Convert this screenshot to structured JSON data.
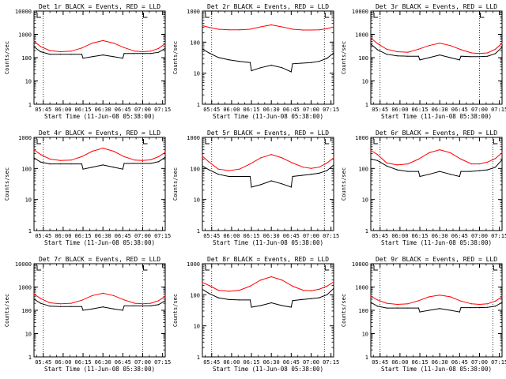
{
  "figure": {
    "colors": {
      "events": "#000000",
      "lld": "#ff0000",
      "axis": "#000000",
      "background": "#ffffff"
    }
  },
  "chart_data": [
    {
      "type": "line",
      "panel": "1r",
      "title": "Det 1r BLACK = Events, RED = LLD",
      "xlabel": "Start Time (11-Jun-08 05:38:00)",
      "ylabel": "Counts/sec",
      "yscale": "log",
      "ylim": [
        1,
        10000
      ],
      "ytick_labels": [
        "1",
        "10",
        "100",
        "1000",
        "10000"
      ],
      "xlim": [
        "05:38",
        "07:17"
      ],
      "xtick_labels": [
        "05:45",
        "06:00",
        "06:15",
        "06:30",
        "06:45",
        "07:00",
        "07:15"
      ],
      "vlines": [
        "05:45",
        "07:00"
      ],
      "grid": false,
      "legend": "none",
      "series": [
        {
          "name": "Events",
          "color": "#000000",
          "x": [
            "05:38",
            "05:43",
            "05:50",
            "05:58",
            "06:06",
            "06:14",
            "06:15",
            "06:22",
            "06:30",
            "06:38",
            "06:45",
            "06:46",
            "06:53",
            "07:00",
            "07:06",
            "07:12",
            "07:17"
          ],
          "y": [
            290,
            180,
            140,
            140,
            140,
            140,
            95,
            110,
            130,
            110,
            95,
            150,
            150,
            150,
            150,
            170,
            250
          ]
        },
        {
          "name": "LLD",
          "color": "#ff0000",
          "x": [
            "05:38",
            "05:43",
            "05:50",
            "05:58",
            "06:06",
            "06:14",
            "06:22",
            "06:30",
            "06:38",
            "06:46",
            "06:54",
            "07:00",
            "07:06",
            "07:12",
            "07:17"
          ],
          "y": [
            500,
            300,
            200,
            180,
            190,
            260,
            420,
            540,
            420,
            270,
            190,
            180,
            190,
            250,
            400
          ]
        }
      ]
    },
    {
      "type": "line",
      "panel": "2r",
      "title": "Det 2r BLACK = Events, RED = LLD",
      "xlabel": "Start Time (11-Jun-08 05:38:00)",
      "ylabel": "Counts/sec",
      "yscale": "log",
      "ylim": [
        1,
        1000
      ],
      "ytick_labels": [
        "1",
        "10",
        "100",
        "1000"
      ],
      "xlim": [
        "05:38",
        "07:17"
      ],
      "xtick_labels": [
        "05:45",
        "06:00",
        "06:15",
        "06:30",
        "06:45",
        "07:00",
        "07:15"
      ],
      "vlines": [
        "05:45",
        "07:10"
      ],
      "grid": false,
      "legend": "none",
      "series": [
        {
          "name": "Events",
          "color": "#000000",
          "x": [
            "05:38",
            "05:43",
            "05:50",
            "05:58",
            "06:06",
            "06:14",
            "06:15",
            "06:22",
            "06:30",
            "06:38",
            "06:45",
            "06:46",
            "06:53",
            "07:00",
            "07:06",
            "07:12",
            "07:17"
          ],
          "y": [
            60,
            45,
            32,
            27,
            24,
            22,
            12,
            15,
            18,
            15,
            11,
            20,
            21,
            22,
            24,
            30,
            45
          ]
        },
        {
          "name": "LLD",
          "color": "#ff0000",
          "x": [
            "05:38",
            "05:43",
            "05:50",
            "05:58",
            "06:06",
            "06:14",
            "06:22",
            "06:30",
            "06:38",
            "06:46",
            "06:54",
            "07:00",
            "07:06",
            "07:12",
            "07:17"
          ],
          "y": [
            340,
            300,
            260,
            250,
            250,
            260,
            310,
            360,
            310,
            260,
            245,
            245,
            250,
            270,
            310
          ]
        }
      ]
    },
    {
      "type": "line",
      "panel": "3r",
      "title": "Det 3r BLACK = Events, RED = LLD",
      "xlabel": "Start Time (11-Jun-08 05:38:00)",
      "ylabel": "Counts/sec",
      "yscale": "log",
      "ylim": [
        1,
        10000
      ],
      "ytick_labels": [
        "1",
        "10",
        "100",
        "1000",
        "10000"
      ],
      "xlim": [
        "05:38",
        "07:17"
      ],
      "xtick_labels": [
        "05:45",
        "06:00",
        "06:15",
        "06:30",
        "06:45",
        "07:00",
        "07:15"
      ],
      "vlines": [
        "05:45",
        "07:00"
      ],
      "grid": false,
      "legend": "none",
      "series": [
        {
          "name": "Events",
          "color": "#000000",
          "x": [
            "05:38",
            "05:43",
            "05:50",
            "05:58",
            "06:06",
            "06:14",
            "06:15",
            "06:22",
            "06:30",
            "06:38",
            "06:45",
            "06:46",
            "06:53",
            "07:00",
            "07:06",
            "07:12",
            "07:17"
          ],
          "y": [
            380,
            220,
            140,
            120,
            115,
            115,
            80,
            100,
            130,
            100,
            80,
            115,
            110,
            110,
            115,
            150,
            280
          ]
        },
        {
          "name": "LLD",
          "color": "#ff0000",
          "x": [
            "05:38",
            "05:43",
            "05:50",
            "05:58",
            "06:06",
            "06:14",
            "06:22",
            "06:30",
            "06:38",
            "06:46",
            "06:54",
            "07:00",
            "07:06",
            "07:12",
            "07:17"
          ],
          "y": [
            700,
            400,
            230,
            180,
            170,
            230,
            330,
            420,
            330,
            220,
            160,
            150,
            160,
            230,
            420
          ]
        }
      ]
    },
    {
      "type": "line",
      "panel": "4r",
      "title": "Det 4r BLACK = Events, RED = LLD",
      "xlabel": "Start Time (11-Jun-08 05:38:00)",
      "ylabel": "Counts/sec",
      "yscale": "log",
      "ylim": [
        1,
        1000
      ],
      "ytick_labels": [
        "1",
        "10",
        "100",
        "1000"
      ],
      "xlim": [
        "05:38",
        "07:17"
      ],
      "xtick_labels": [
        "05:45",
        "06:00",
        "06:15",
        "06:30",
        "06:45",
        "07:00",
        "07:15"
      ],
      "vlines": [
        "05:45",
        "07:00"
      ],
      "grid": false,
      "legend": "none",
      "series": [
        {
          "name": "Events",
          "color": "#000000",
          "x": [
            "05:38",
            "05:43",
            "05:50",
            "05:58",
            "06:06",
            "06:14",
            "06:15",
            "06:22",
            "06:30",
            "06:38",
            "06:45",
            "06:46",
            "06:53",
            "07:00",
            "07:06",
            "07:12",
            "07:17"
          ],
          "y": [
            220,
            160,
            140,
            140,
            140,
            140,
            95,
            110,
            130,
            110,
            95,
            145,
            145,
            145,
            145,
            165,
            230
          ]
        },
        {
          "name": "LLD",
          "color": "#ff0000",
          "x": [
            "05:38",
            "05:43",
            "05:50",
            "05:58",
            "06:06",
            "06:14",
            "06:22",
            "06:30",
            "06:38",
            "06:46",
            "06:54",
            "07:00",
            "07:06",
            "07:12",
            "07:17"
          ],
          "y": [
            400,
            280,
            200,
            180,
            185,
            240,
            360,
            450,
            360,
            240,
            185,
            180,
            190,
            240,
            330
          ]
        }
      ]
    },
    {
      "type": "line",
      "panel": "5r",
      "title": "Det 5r BLACK = Events, RED = LLD",
      "xlabel": "Start Time (11-Jun-08 05:38:00)",
      "ylabel": "Counts/sec",
      "yscale": "log",
      "ylim": [
        1,
        1000
      ],
      "ytick_labels": [
        "1",
        "10",
        "100",
        "1000"
      ],
      "xlim": [
        "05:38",
        "07:17"
      ],
      "xtick_labels": [
        "05:45",
        "06:00",
        "06:15",
        "06:30",
        "06:45",
        "07:00",
        "07:15"
      ],
      "vlines": [
        "05:45",
        "07:10"
      ],
      "grid": false,
      "legend": "none",
      "series": [
        {
          "name": "Events",
          "color": "#000000",
          "x": [
            "05:38",
            "05:43",
            "05:50",
            "05:58",
            "06:06",
            "06:14",
            "06:15",
            "06:22",
            "06:30",
            "06:38",
            "06:45",
            "06:46",
            "06:53",
            "07:00",
            "07:06",
            "07:12",
            "07:17"
          ],
          "y": [
            120,
            90,
            65,
            55,
            55,
            55,
            25,
            30,
            40,
            32,
            25,
            55,
            60,
            65,
            70,
            85,
            130
          ]
        },
        {
          "name": "LLD",
          "color": "#ff0000",
          "x": [
            "05:38",
            "05:43",
            "05:50",
            "05:58",
            "06:06",
            "06:14",
            "06:22",
            "06:30",
            "06:38",
            "06:46",
            "06:54",
            "07:00",
            "07:06",
            "07:12",
            "07:17"
          ],
          "y": [
            250,
            160,
            95,
            85,
            95,
            140,
            220,
            280,
            220,
            150,
            110,
            100,
            110,
            150,
            220
          ]
        }
      ]
    },
    {
      "type": "line",
      "panel": "6r",
      "title": "Det 6r BLACK = Events, RED = LLD",
      "xlabel": "Start Time (11-Jun-08 05:38:00)",
      "ylabel": "Counts/sec",
      "yscale": "log",
      "ylim": [
        1,
        1000
      ],
      "ytick_labels": [
        "1",
        "10",
        "100",
        "1000"
      ],
      "xlim": [
        "05:38",
        "07:17"
      ],
      "xtick_labels": [
        "05:45",
        "06:00",
        "06:15",
        "06:30",
        "06:45",
        "07:00",
        "07:15"
      ],
      "vlines": [
        "05:45",
        "07:10"
      ],
      "grid": false,
      "legend": "none",
      "series": [
        {
          "name": "Events",
          "color": "#000000",
          "x": [
            "05:38",
            "05:43",
            "05:50",
            "05:58",
            "06:06",
            "06:14",
            "06:15",
            "06:22",
            "06:30",
            "06:38",
            "06:45",
            "06:46",
            "06:53",
            "07:00",
            "07:06",
            "07:12",
            "07:17"
          ],
          "y": [
            200,
            180,
            120,
            90,
            80,
            80,
            55,
            65,
            80,
            65,
            55,
            80,
            80,
            85,
            90,
            110,
            190
          ]
        },
        {
          "name": "LLD",
          "color": "#ff0000",
          "x": [
            "05:38",
            "05:43",
            "05:50",
            "05:58",
            "06:06",
            "06:14",
            "06:22",
            "06:30",
            "06:38",
            "06:46",
            "06:54",
            "07:00",
            "07:06",
            "07:12",
            "07:17"
          ],
          "y": [
            380,
            280,
            150,
            130,
            140,
            200,
            320,
            400,
            320,
            200,
            140,
            140,
            160,
            210,
            320
          ]
        }
      ]
    },
    {
      "type": "line",
      "panel": "7r",
      "title": "Det 7r BLACK = Events, RED = LLD",
      "xlabel": "Start Time (11-Jun-08 05:38:00)",
      "ylabel": "Counts/sec",
      "yscale": "log",
      "ylim": [
        1,
        10000
      ],
      "ytick_labels": [
        "1",
        "10",
        "100",
        "1000",
        "10000"
      ],
      "xlim": [
        "05:38",
        "07:17"
      ],
      "xtick_labels": [
        "05:45",
        "06:00",
        "06:15",
        "06:30",
        "06:45",
        "07:00",
        "07:15"
      ],
      "vlines": [
        "05:45",
        "07:00"
      ],
      "grid": false,
      "legend": "none",
      "series": [
        {
          "name": "Events",
          "color": "#000000",
          "x": [
            "05:38",
            "05:43",
            "05:50",
            "05:58",
            "06:06",
            "06:14",
            "06:15",
            "06:22",
            "06:30",
            "06:38",
            "06:45",
            "06:46",
            "06:53",
            "07:00",
            "07:06",
            "07:12",
            "07:17"
          ],
          "y": [
            300,
            200,
            150,
            145,
            145,
            145,
            100,
            115,
            140,
            115,
            100,
            155,
            155,
            155,
            155,
            175,
            260
          ]
        },
        {
          "name": "LLD",
          "color": "#ff0000",
          "x": [
            "05:38",
            "05:43",
            "05:50",
            "05:58",
            "06:06",
            "06:14",
            "06:22",
            "06:30",
            "06:38",
            "06:46",
            "06:54",
            "07:00",
            "07:06",
            "07:12",
            "07:17"
          ],
          "y": [
            500,
            320,
            210,
            190,
            200,
            270,
            430,
            540,
            430,
            280,
            200,
            190,
            200,
            260,
            400
          ]
        }
      ]
    },
    {
      "type": "line",
      "panel": "8r",
      "title": "Det 8r BLACK = Events, RED = LLD",
      "xlabel": "Start Time (11-Jun-08 05:38:00)",
      "ylabel": "Counts/sec",
      "yscale": "log",
      "ylim": [
        1,
        1000
      ],
      "ytick_labels": [
        "1",
        "10",
        "100",
        "1000"
      ],
      "xlim": [
        "05:38",
        "07:17"
      ],
      "xtick_labels": [
        "05:45",
        "06:00",
        "06:15",
        "06:30",
        "06:45",
        "07:00",
        "07:15"
      ],
      "vlines": [
        "05:45",
        "07:10"
      ],
      "grid": false,
      "legend": "none",
      "series": [
        {
          "name": "Events",
          "color": "#000000",
          "x": [
            "05:38",
            "05:43",
            "05:50",
            "05:58",
            "06:06",
            "06:14",
            "06:15",
            "06:22",
            "06:30",
            "06:38",
            "06:45",
            "06:46",
            "06:53",
            "07:00",
            "07:06",
            "07:12",
            "07:17"
          ],
          "y": [
            150,
            110,
            80,
            70,
            68,
            68,
            40,
            45,
            55,
            45,
            40,
            65,
            70,
            75,
            80,
            100,
            160
          ]
        },
        {
          "name": "LLD",
          "color": "#ff0000",
          "x": [
            "05:38",
            "05:43",
            "05:50",
            "05:58",
            "06:06",
            "06:14",
            "06:22",
            "06:30",
            "06:38",
            "06:46",
            "06:54",
            "07:00",
            "07:06",
            "07:12",
            "07:17"
          ],
          "y": [
            250,
            200,
            140,
            130,
            140,
            190,
            300,
            380,
            300,
            190,
            140,
            135,
            150,
            190,
            260
          ]
        }
      ]
    },
    {
      "type": "line",
      "panel": "9r",
      "title": "Det 9r BLACK = Events, RED = LLD",
      "xlabel": "Start Time (11-Jun-08 05:38:00)",
      "ylabel": "Counts/sec",
      "yscale": "log",
      "ylim": [
        1,
        10000
      ],
      "ytick_labels": [
        "1",
        "10",
        "100",
        "1000",
        "10000"
      ],
      "xlim": [
        "05:38",
        "07:17"
      ],
      "xtick_labels": [
        "05:45",
        "06:00",
        "06:15",
        "06:30",
        "06:45",
        "07:00",
        "07:15"
      ],
      "vlines": [
        "05:45",
        "07:10"
      ],
      "grid": false,
      "legend": "none",
      "series": [
        {
          "name": "Events",
          "color": "#000000",
          "x": [
            "05:38",
            "05:43",
            "05:50",
            "05:58",
            "06:06",
            "06:14",
            "06:15",
            "06:22",
            "06:30",
            "06:38",
            "06:45",
            "06:46",
            "06:53",
            "07:00",
            "07:06",
            "07:12",
            "07:17"
          ],
          "y": [
            220,
            150,
            125,
            125,
            125,
            125,
            85,
            100,
            120,
            100,
            85,
            130,
            130,
            130,
            135,
            150,
            220
          ]
        },
        {
          "name": "LLD",
          "color": "#ff0000",
          "x": [
            "05:38",
            "05:43",
            "05:50",
            "05:58",
            "06:06",
            "06:14",
            "06:22",
            "06:30",
            "06:38",
            "06:46",
            "06:54",
            "07:00",
            "07:06",
            "07:12",
            "07:17"
          ],
          "y": [
            400,
            280,
            200,
            180,
            190,
            260,
            380,
            450,
            380,
            250,
            190,
            180,
            190,
            250,
            380
          ]
        }
      ]
    }
  ]
}
